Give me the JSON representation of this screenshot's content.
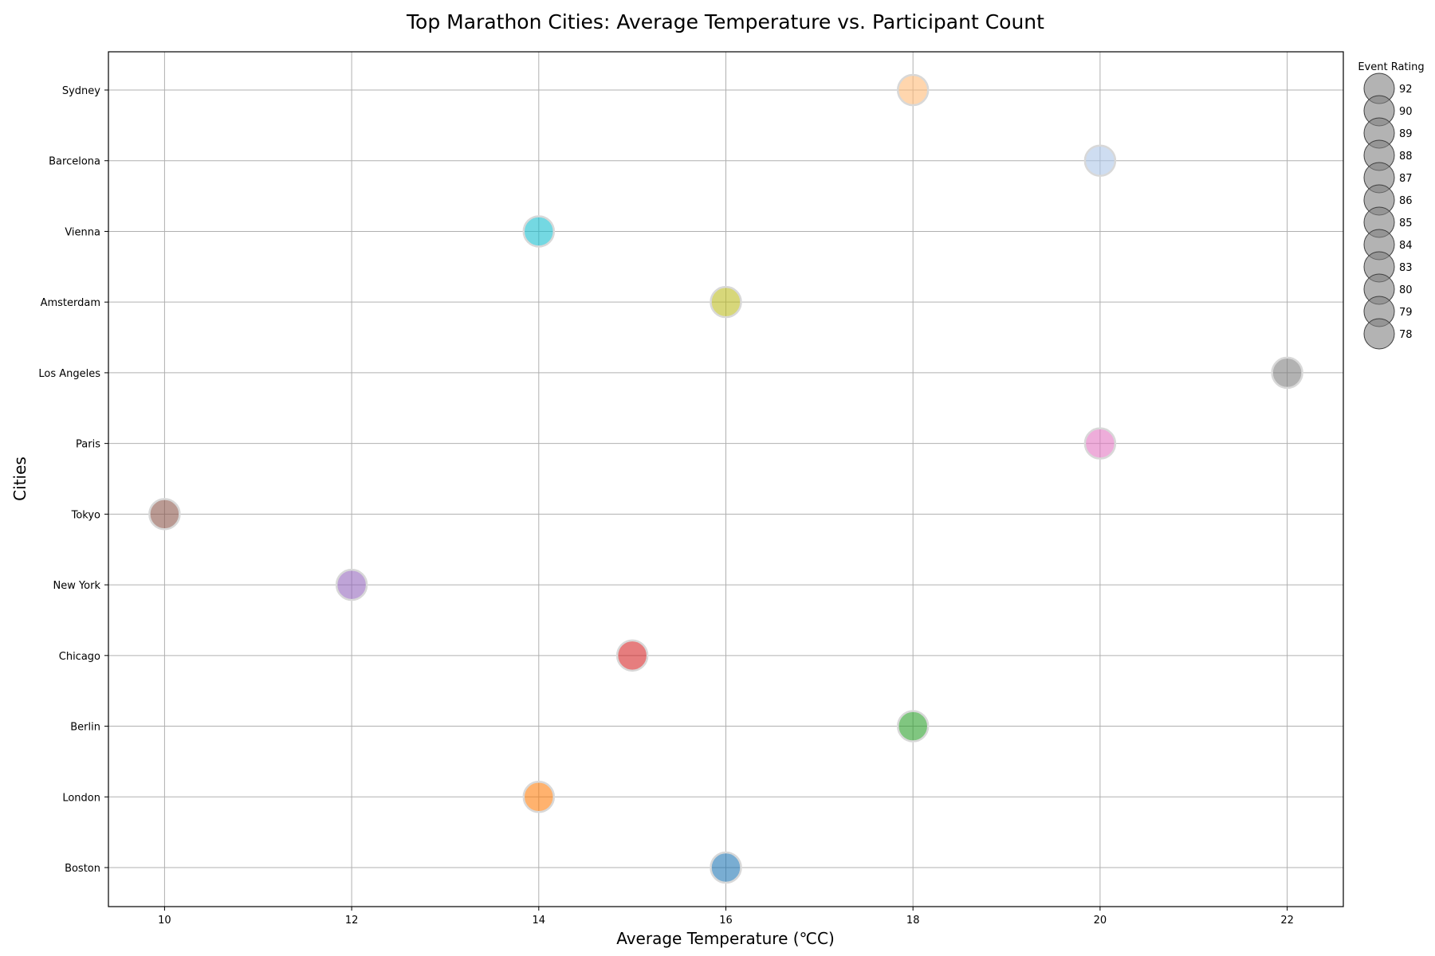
{
  "chart_data": {
    "type": "scatter",
    "title": "Top Marathon Cities: Average Temperature vs. Participant Count",
    "xlabel": "Average Temperature (℃C)",
    "ylabel": "Cities",
    "xlim": [
      9.4,
      22.6
    ],
    "xticks": [
      "10",
      "12",
      "14",
      "16",
      "18",
      "20",
      "22"
    ],
    "categories": [
      "Boston",
      "London",
      "Berlin",
      "Chicago",
      "New York",
      "Tokyo",
      "Paris",
      "Los Angeles",
      "Amsterdam",
      "Vienna",
      "Barcelona",
      "Sydney"
    ],
    "grid": true,
    "points": [
      {
        "city": "Boston",
        "temperature": 16,
        "color": "#1f77b4"
      },
      {
        "city": "London",
        "temperature": 14,
        "color": "#ff7f0e"
      },
      {
        "city": "Berlin",
        "temperature": 18,
        "color": "#2ca02c"
      },
      {
        "city": "Chicago",
        "temperature": 15,
        "color": "#d62728"
      },
      {
        "city": "New York",
        "temperature": 12,
        "color": "#9467bd"
      },
      {
        "city": "Tokyo",
        "temperature": 10,
        "color": "#8c564b"
      },
      {
        "city": "Paris",
        "temperature": 20,
        "color": "#e377c2"
      },
      {
        "city": "Los Angeles",
        "temperature": 22,
        "color": "#7f7f7f"
      },
      {
        "city": "Amsterdam",
        "temperature": 16,
        "color": "#bcbd22"
      },
      {
        "city": "Vienna",
        "temperature": 14,
        "color": "#17becf"
      },
      {
        "city": "Barcelona",
        "temperature": 20,
        "color": "#aec7e8"
      },
      {
        "city": "Sydney",
        "temperature": 18,
        "color": "#ffbb78"
      }
    ],
    "legend": {
      "title": "Event Rating",
      "placement": "right",
      "entries": [
        "92",
        "90",
        "89",
        "88",
        "87",
        "86",
        "85",
        "84",
        "83",
        "80",
        "79",
        "78"
      ]
    }
  }
}
